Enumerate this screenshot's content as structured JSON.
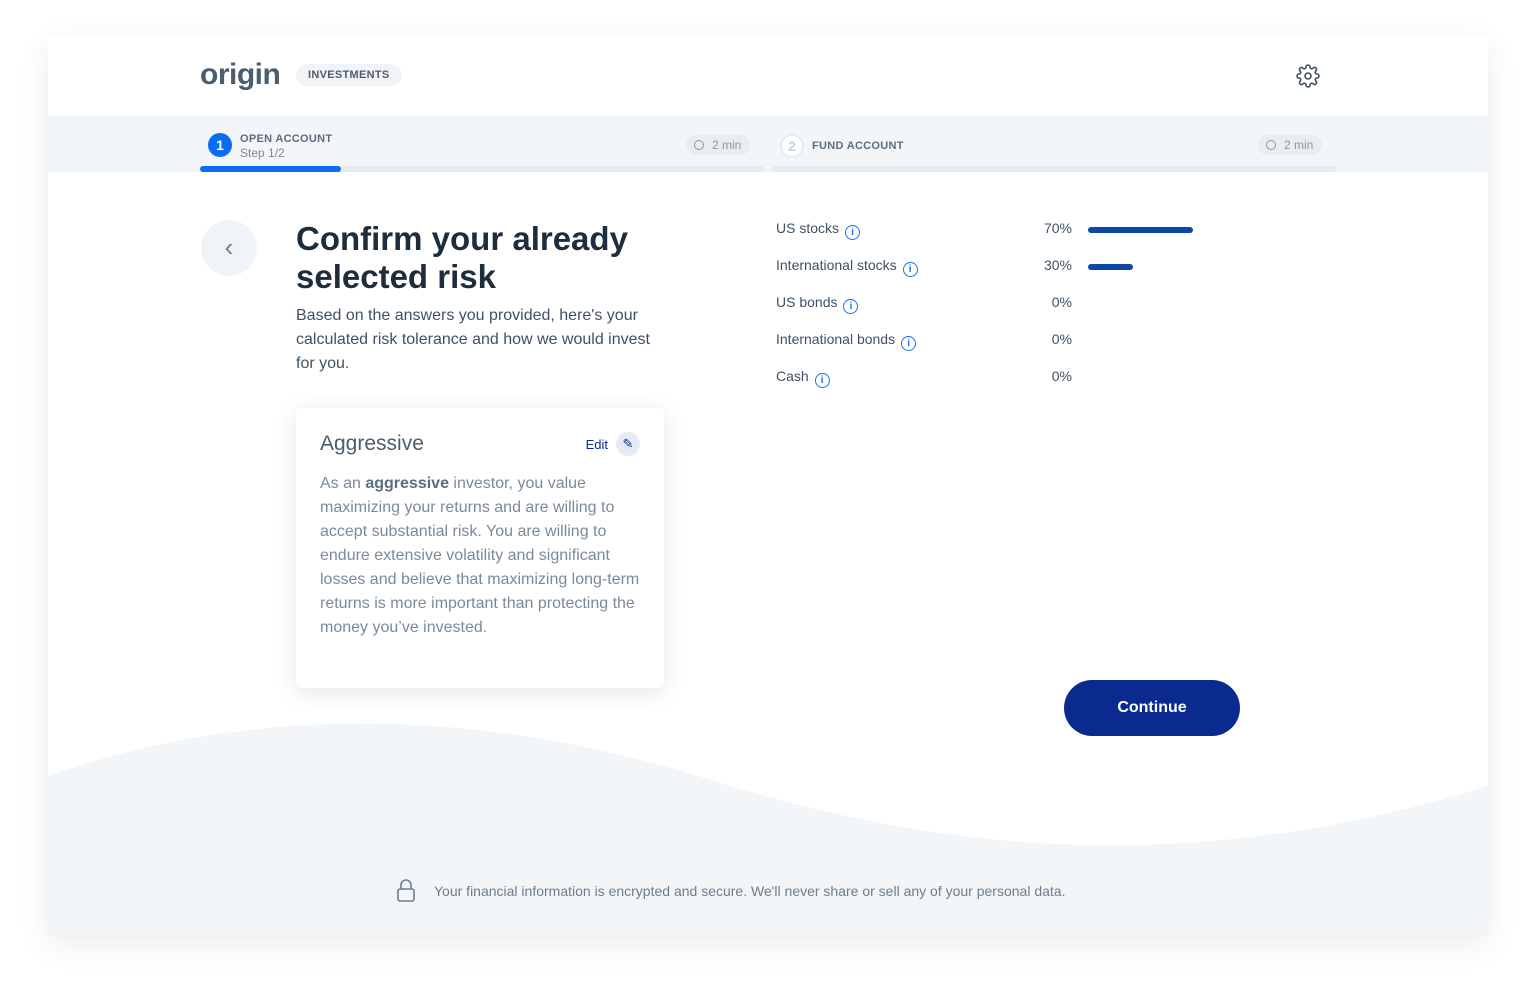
{
  "header": {
    "logo": "origin",
    "badge": "INVESTMENTS",
    "settings_icon": "gear-icon"
  },
  "steps": [
    {
      "number": "1",
      "title": "OPEN ACCOUNT",
      "subtitle": "Step 1/2",
      "time": "2 min",
      "progress": 0.25,
      "active": true
    },
    {
      "number": "2",
      "title": "FUND ACCOUNT",
      "time": "2 min",
      "progress": 0,
      "active": false
    }
  ],
  "main": {
    "title": "Confirm your already selected risk",
    "intro": "Based on the answers you provided, here's your calculated risk tolerance and how we would invest for you.",
    "risk": {
      "title": "Aggressive",
      "edit_label": "Edit",
      "desc_pre": "As an ",
      "desc_bold": "aggressive",
      "desc_post": " investor, you value maximizing your returns and are willing to accept substantial risk. You are willing to endure extensive volatility and significant losses and believe that maximizing long-term returns is more important than protecting the money you’ve invested."
    },
    "allocation": [
      {
        "label": "US stocks",
        "pct": "70%",
        "value": 70
      },
      {
        "label": "International stocks",
        "pct": "30%",
        "value": 30
      },
      {
        "label": "US bonds",
        "pct": "0%",
        "value": 0
      },
      {
        "label": "International bonds",
        "pct": "0%",
        "value": 0
      },
      {
        "label": "Cash",
        "pct": "0%",
        "value": 0
      }
    ],
    "continue_label": "Continue"
  },
  "footer": {
    "text": "Your financial information is encrypted and secure. We'll never share or sell any of your personal data."
  },
  "colors": {
    "accent": "#0a6cf1",
    "primary_button": "#0a2a8f",
    "bar": "#0d47a8"
  }
}
